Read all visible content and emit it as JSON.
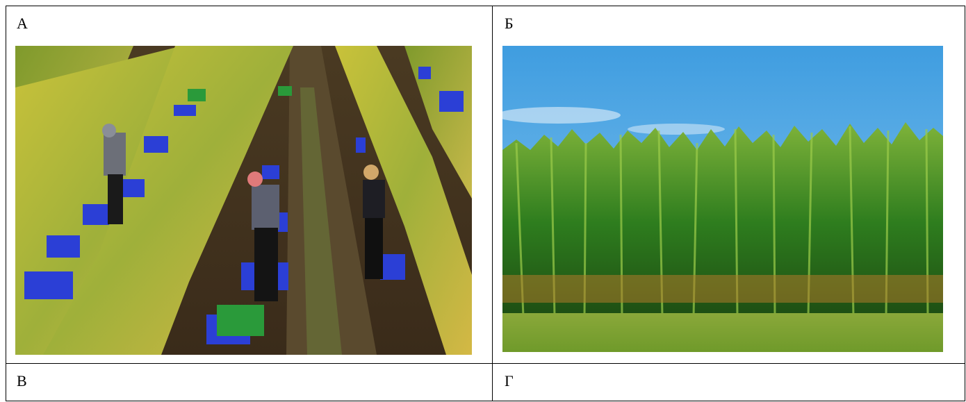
{
  "cells": {
    "a": {
      "label": "А"
    },
    "b": {
      "label": "Б"
    },
    "v": {
      "label": "В"
    },
    "g": {
      "label": "Г"
    }
  },
  "images": {
    "a": {
      "subject": "vineyard-harvest-photo"
    },
    "b": {
      "subject": "corn-field-photo"
    }
  }
}
